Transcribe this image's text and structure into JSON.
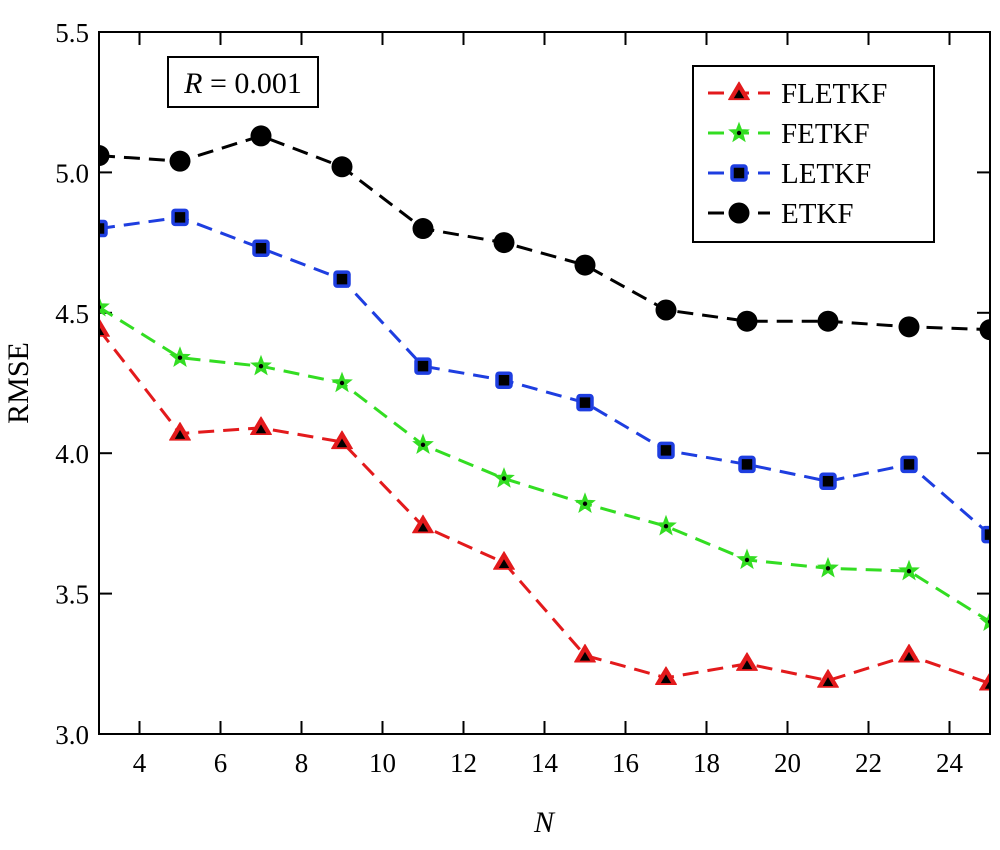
{
  "chart_data": {
    "type": "line",
    "xlabel": "N",
    "ylabel": "RMSE",
    "xlim": [
      3,
      25
    ],
    "ylim": [
      3.0,
      5.5
    ],
    "x_ticks": [
      4,
      6,
      8,
      10,
      12,
      14,
      16,
      18,
      20,
      22,
      24
    ],
    "y_ticks": [
      "3.0",
      "3.5",
      "4.0",
      "4.5",
      "5.0",
      "5.5"
    ],
    "grid": false,
    "legend_position": "top-right",
    "annotation": {
      "var": "R",
      "eq": " = 0.001"
    },
    "x": [
      3,
      5,
      7,
      9,
      11,
      13,
      15,
      17,
      19,
      21,
      23,
      25
    ],
    "series": [
      {
        "name": "FLETKF",
        "color": "#e31a1c",
        "marker": "triangle",
        "values": [
          4.44,
          4.07,
          4.09,
          4.04,
          3.74,
          3.61,
          3.28,
          3.2,
          3.25,
          3.19,
          3.28,
          3.18
        ]
      },
      {
        "name": "FETKF",
        "color": "#33dd22",
        "marker": "star",
        "values": [
          4.52,
          4.34,
          4.31,
          4.25,
          4.03,
          3.91,
          3.82,
          3.74,
          3.62,
          3.59,
          3.58,
          3.4
        ]
      },
      {
        "name": "LETKF",
        "color": "#1e3ee0",
        "marker": "square",
        "values": [
          4.8,
          4.84,
          4.73,
          4.62,
          4.31,
          4.26,
          4.18,
          4.01,
          3.96,
          3.9,
          3.96,
          3.71
        ]
      },
      {
        "name": "ETKF",
        "color": "#000000",
        "marker": "circle",
        "values": [
          5.06,
          5.04,
          5.13,
          5.02,
          4.8,
          4.75,
          4.67,
          4.51,
          4.47,
          4.47,
          4.45,
          4.44
        ]
      }
    ]
  }
}
